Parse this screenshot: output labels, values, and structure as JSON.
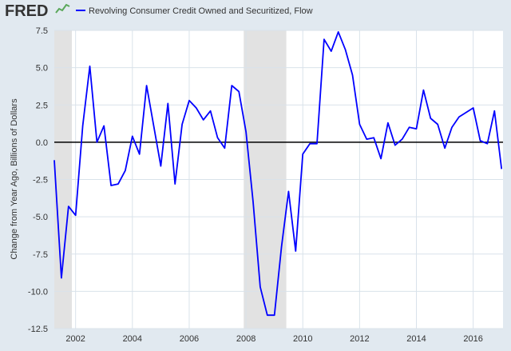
{
  "header": {
    "logo_text": "FRED",
    "legend_label": "Revolving Consumer Credit Owned and Securitized, Flow"
  },
  "chart_data": {
    "type": "line",
    "title": "",
    "xlabel": "",
    "ylabel": "Change from Year Ago, Billions of Dollars",
    "xlim": [
      2001.25,
      2017.05
    ],
    "ylim": [
      -12.5,
      7.5
    ],
    "yticks": [
      7.5,
      5.0,
      2.5,
      0.0,
      -2.5,
      -5.0,
      -7.5,
      -10.0,
      -12.5
    ],
    "ytick_labels": [
      "7.5",
      "5.0",
      "2.5",
      "0.0",
      "-2.5",
      "-5.0",
      "-7.5",
      "-10.0",
      "-12.5"
    ],
    "xticks": [
      2002,
      2004,
      2006,
      2008,
      2010,
      2012,
      2014,
      2016
    ],
    "xtick_labels": [
      "2002",
      "2004",
      "2006",
      "2008",
      "2010",
      "2012",
      "2014",
      "2016"
    ],
    "recessions": [
      [
        2001.25,
        2001.87
      ],
      [
        2007.92,
        2009.42
      ]
    ],
    "zero_line": 0,
    "colors": {
      "line": "#0000ff",
      "background": "#e1e9f0",
      "plot_background": "#ffffff",
      "recession": "#e2e2e2",
      "grid": "#d9e2ea",
      "zero_line": "#000000",
      "text": "#333333",
      "logo_graph": "#5aa75a"
    },
    "series": [
      {
        "name": "Revolving Consumer Credit Owned and Securitized, Flow",
        "x": [
          2001.25,
          2001.5,
          2001.75,
          2002.0,
          2002.25,
          2002.5,
          2002.75,
          2003.0,
          2003.25,
          2003.5,
          2003.75,
          2004.0,
          2004.25,
          2004.5,
          2004.75,
          2005.0,
          2005.25,
          2005.5,
          2005.75,
          2006.0,
          2006.25,
          2006.5,
          2006.75,
          2007.0,
          2007.25,
          2007.5,
          2007.75,
          2008.0,
          2008.25,
          2008.5,
          2008.75,
          2009.0,
          2009.25,
          2009.5,
          2009.75,
          2010.0,
          2010.25,
          2010.5,
          2010.75,
          2011.0,
          2011.25,
          2011.5,
          2011.75,
          2012.0,
          2012.25,
          2012.5,
          2012.75,
          2013.0,
          2013.25,
          2013.5,
          2013.75,
          2014.0,
          2014.25,
          2014.5,
          2014.75,
          2015.0,
          2015.25,
          2015.5,
          2015.75,
          2016.0,
          2016.25,
          2016.5,
          2016.75,
          2017.0
        ],
        "values": [
          -1.2,
          -9.1,
          -4.3,
          -4.9,
          1.1,
          5.1,
          0.0,
          1.1,
          -2.9,
          -2.8,
          -1.9,
          0.4,
          -0.8,
          3.8,
          1.1,
          -1.6,
          2.6,
          -2.8,
          1.2,
          2.8,
          2.3,
          1.5,
          2.1,
          0.3,
          -0.4,
          3.8,
          3.4,
          0.7,
          -4.0,
          -9.7,
          -11.6,
          -11.6,
          -7.0,
          -3.3,
          -7.3,
          -0.8,
          -0.1,
          -0.1,
          6.9,
          6.1,
          7.4,
          6.2,
          4.5,
          1.2,
          0.2,
          0.3,
          -1.1,
          1.3,
          -0.2,
          0.2,
          1.0,
          0.9,
          3.5,
          1.6,
          1.2,
          -0.4,
          1.0,
          1.7,
          2.0,
          2.3,
          0.1,
          -0.1,
          2.1,
          -1.8
        ]
      }
    ]
  }
}
